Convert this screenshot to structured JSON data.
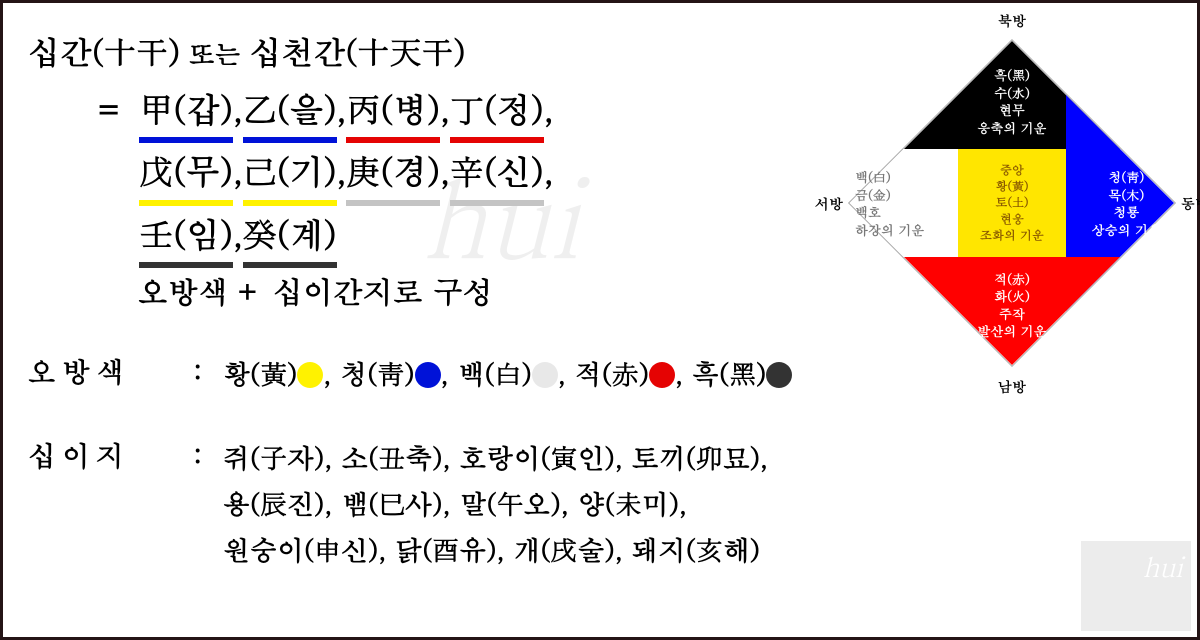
{
  "title": {
    "prefix": "십간(十干)",
    "mid": " 또는 ",
    "suffix": "십천간(十天干)"
  },
  "stems": {
    "pairs": [
      {
        "h": "甲",
        "k": "갑",
        "grp": "blue"
      },
      {
        "h": "乙",
        "k": "을",
        "grp": "blue"
      },
      {
        "h": "丙",
        "k": "병",
        "grp": "red"
      },
      {
        "h": "丁",
        "k": "정",
        "grp": "red"
      },
      {
        "h": "戊",
        "k": "무",
        "grp": "yellow"
      },
      {
        "h": "己",
        "k": "기",
        "grp": "yellow"
      },
      {
        "h": "庚",
        "k": "경",
        "grp": "grey"
      },
      {
        "h": "辛",
        "k": "신",
        "grp": "grey"
      },
      {
        "h": "壬",
        "k": "임",
        "grp": "black"
      },
      {
        "h": "癸",
        "k": "계",
        "grp": "black"
      }
    ],
    "row_len": 4
  },
  "subtitle": "오방색 + 십이간지로 구성",
  "colors_section": {
    "label": "오방색",
    "items": [
      {
        "text": "황(黃)",
        "swatch": "#fff200"
      },
      {
        "text": "청(靑)",
        "swatch": "#0012d8"
      },
      {
        "text": "백(白)",
        "swatch": "#e8e8e8"
      },
      {
        "text": "적(赤)",
        "swatch": "#e50303"
      },
      {
        "text": "흑(黑)",
        "swatch": "#333333"
      }
    ]
  },
  "zodiac_section": {
    "label": "십이지",
    "items": [
      "쥐(子자)",
      "소(丑축)",
      "호랑이(寅인)",
      "토끼(卯묘)",
      "용(辰진)",
      "뱀(巳사)",
      "말(午오)",
      "양(未미)",
      "원숭이(申신)",
      "닭(酉유)",
      "개(戌술)",
      "돼지(亥해)"
    ],
    "row_len": 4
  },
  "diagram": {
    "dir_labels": {
      "top": "북방",
      "right": "동방",
      "bottom": "남방",
      "left": "서방"
    },
    "segments": {
      "top": {
        "bg": "#000000",
        "fg": "#ffffff",
        "lines": [
          "흑(黑)",
          "수(水)",
          "현무",
          "응축의 기운"
        ]
      },
      "right": {
        "bg": "#0000ff",
        "fg": "#ffffff",
        "lines": [
          "청(靑)",
          "목(木)",
          "청룡",
          "상승의 기운"
        ]
      },
      "bottom": {
        "bg": "#ff0000",
        "fg": "#ffffff",
        "lines": [
          "적(赤)",
          "화(火)",
          "주작",
          "발산의 기운"
        ]
      },
      "left": {
        "bg": "#ffffff",
        "fg": "#777777",
        "lines": [
          "백(白)",
          "금(金)",
          "백호",
          "하강의 기운"
        ]
      },
      "center": {
        "bg": "#ffe600",
        "fg": "#8a5a00",
        "lines": [
          "중앙",
          "황(黃)",
          "토(土)",
          "현웅",
          "조화의 기운"
        ]
      }
    }
  },
  "watermark": "hui"
}
